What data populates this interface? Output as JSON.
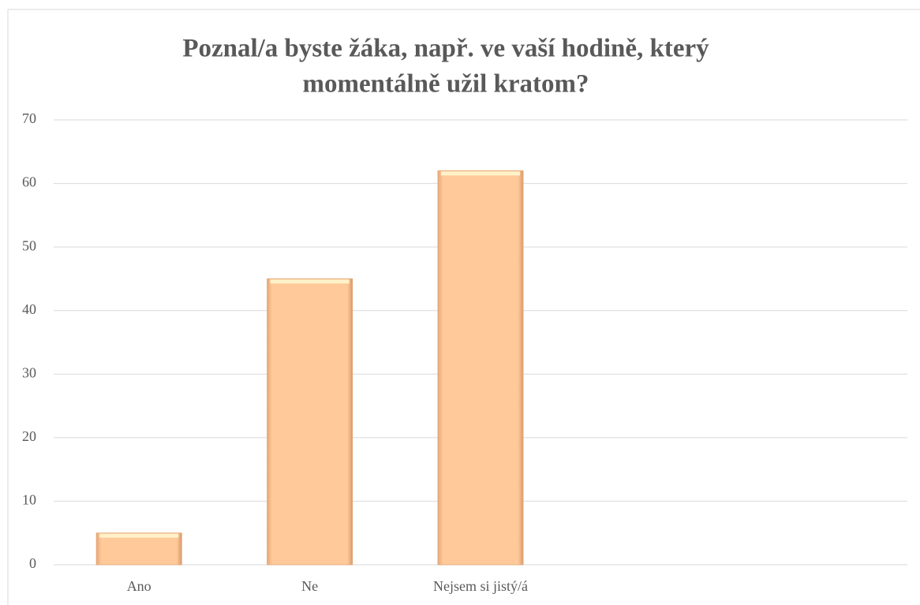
{
  "chart_data": {
    "type": "bar",
    "title": [
      "Poznal/a byste žáka, např. ve vaší hodině, který",
      "momentálně užil kratom?"
    ],
    "categories": [
      "Ano",
      "Ne",
      "Nejsem si jistý/á",
      null,
      null
    ],
    "values": [
      5,
      45,
      62,
      null,
      null
    ],
    "color": "#ffc999",
    "ylim": [
      0,
      70
    ],
    "yticks": [
      0,
      10,
      20,
      30,
      40,
      50,
      60,
      70
    ],
    "grid": true
  }
}
